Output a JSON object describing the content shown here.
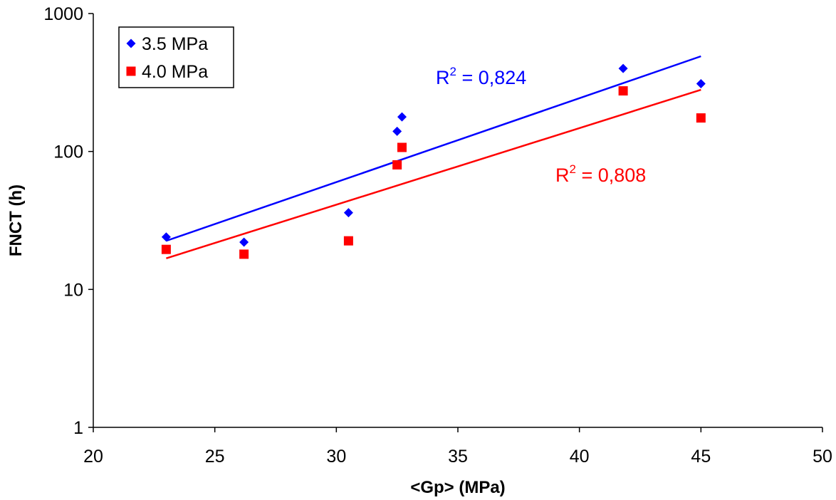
{
  "chart_data": {
    "type": "scatter",
    "y_scale": "log",
    "xlabel": "<Gp> (MPa)",
    "ylabel": "FNCT (h)",
    "xlim": [
      20,
      50
    ],
    "ylim": [
      1,
      1000
    ],
    "x_ticks": [
      "20",
      "25",
      "30",
      "35",
      "40",
      "45",
      "50"
    ],
    "y_ticks": [
      "1",
      "10",
      "100",
      "1000"
    ],
    "grid": false,
    "legend_position": "top-left",
    "series": [
      {
        "name": "3.5 MPa",
        "color": "#0000ff",
        "marker": "diamond",
        "points": [
          {
            "x": 23.0,
            "y": 24
          },
          {
            "x": 26.2,
            "y": 22
          },
          {
            "x": 30.5,
            "y": 36
          },
          {
            "x": 32.5,
            "y": 140
          },
          {
            "x": 32.7,
            "y": 178
          },
          {
            "x": 41.8,
            "y": 400
          },
          {
            "x": 45.0,
            "y": 310
          }
        ],
        "trendline": {
          "type": "exponential",
          "from": {
            "x": 23.0,
            "y": 22.5
          },
          "to": {
            "x": 45.0,
            "y": 490
          }
        },
        "r2_label": {
          "base": "R",
          "sup": "2",
          "rest": " = 0,824"
        }
      },
      {
        "name": "4.0 MPa",
        "color": "#ff0000",
        "marker": "square",
        "points": [
          {
            "x": 23.0,
            "y": 19.5
          },
          {
            "x": 26.2,
            "y": 18
          },
          {
            "x": 30.5,
            "y": 22.5
          },
          {
            "x": 32.5,
            "y": 80
          },
          {
            "x": 32.7,
            "y": 107
          },
          {
            "x": 41.8,
            "y": 275
          },
          {
            "x": 45.0,
            "y": 175
          }
        ],
        "trendline": {
          "type": "exponential",
          "from": {
            "x": 23.0,
            "y": 16.8
          },
          "to": {
            "x": 45.0,
            "y": 280
          }
        },
        "r2_label": {
          "base": "R",
          "sup": "2",
          "rest": " = 0,808"
        }
      }
    ]
  }
}
